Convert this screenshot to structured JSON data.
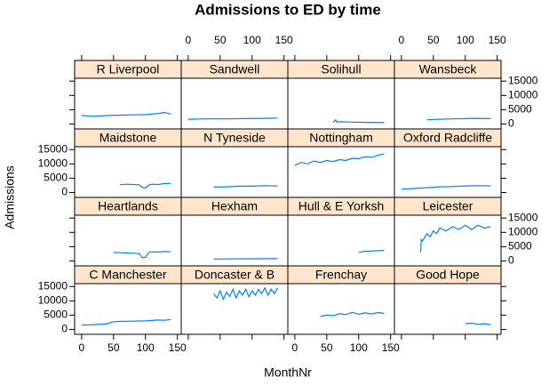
{
  "chart_data": {
    "type": "line",
    "title": "Admissions to ED by time",
    "xlabel": "MonthNr",
    "ylabel": "Admissions",
    "color": "#0080ff",
    "strip_color": "#ffe5cc",
    "xlim": [
      -11,
      156
    ],
    "ylim": [
      -1700,
      16000
    ],
    "xticks": [
      0,
      50,
      100,
      150
    ],
    "yticks": [
      0,
      5000,
      10000,
      15000
    ],
    "panels": [
      {
        "name": "R Liverpool",
        "x": [
          0,
          20,
          40,
          60,
          80,
          100,
          120,
          130,
          140
        ],
        "values": [
          3000,
          2700,
          3000,
          3100,
          3200,
          3300,
          3700,
          4000,
          3500
        ]
      },
      {
        "name": "Sandwell",
        "x": [
          0,
          30,
          60,
          90,
          120,
          140
        ],
        "values": [
          1700,
          1800,
          1800,
          1900,
          2000,
          2100
        ]
      },
      {
        "name": "Solihull",
        "x": [
          60,
          64,
          66,
          70,
          90,
          110,
          140
        ],
        "values": [
          600,
          1500,
          700,
          800,
          700,
          600,
          500
        ]
      },
      {
        "name": "Wansbeck",
        "x": [
          40,
          60,
          80,
          100,
          120,
          140
        ],
        "values": [
          1500,
          1700,
          1800,
          1900,
          2000,
          1900
        ]
      },
      {
        "name": "Maidstone",
        "x": [
          60,
          70,
          80,
          90,
          95,
          100,
          105,
          110,
          120,
          130,
          140
        ],
        "values": [
          2700,
          2900,
          2800,
          2700,
          1800,
          1500,
          2600,
          2900,
          2800,
          3100,
          3200
        ]
      },
      {
        "name": "N Tyneside",
        "x": [
          40,
          60,
          80,
          100,
          120,
          140
        ],
        "values": [
          1900,
          2000,
          2200,
          2200,
          2400,
          2300
        ]
      },
      {
        "name": "Nottingham",
        "x": [
          0,
          10,
          20,
          30,
          40,
          50,
          60,
          70,
          80,
          90,
          100,
          110,
          120,
          130,
          140
        ],
        "values": [
          9500,
          10500,
          10000,
          11000,
          10500,
          11200,
          10800,
          11500,
          11200,
          12000,
          11800,
          12500,
          12300,
          13000,
          13500
        ]
      },
      {
        "name": "Oxford Radcliffe",
        "x": [
          0,
          20,
          40,
          60,
          80,
          100,
          120,
          140
        ],
        "values": [
          1200,
          1400,
          1700,
          2000,
          2100,
          2300,
          2400,
          2300
        ]
      },
      {
        "name": "Heartlands",
        "x": [
          50,
          60,
          70,
          80,
          90,
          95,
          100,
          105,
          110,
          120,
          130,
          140
        ],
        "values": [
          3000,
          2900,
          2800,
          2700,
          2600,
          1100,
          1300,
          3000,
          3200,
          3100,
          3300,
          3200
        ]
      },
      {
        "name": "Hexham",
        "x": [
          40,
          80,
          140
        ],
        "values": [
          700,
          750,
          800
        ]
      },
      {
        "name": "Hull & E Yorksh",
        "x": [
          100,
          110,
          120,
          130,
          140
        ],
        "values": [
          3000,
          3400,
          3500,
          3600,
          3700
        ]
      },
      {
        "name": "Leicester",
        "x": [
          30,
          31,
          33,
          40,
          45,
          50,
          55,
          60,
          70,
          80,
          90,
          100,
          110,
          120,
          130,
          140
        ],
        "values": [
          3000,
          7500,
          7000,
          9500,
          8500,
          10500,
          9500,
          11500,
          10500,
          12000,
          11000,
          12500,
          11000,
          12500,
          11500,
          12000
        ]
      },
      {
        "name": "C Manchester",
        "x": [
          0,
          20,
          40,
          50,
          60,
          80,
          100,
          120,
          130,
          140
        ],
        "values": [
          1500,
          1700,
          2000,
          2700,
          2800,
          2900,
          3000,
          3300,
          3200,
          3500
        ]
      },
      {
        "name": "Doncaster & B",
        "x": [
          40,
          45,
          50,
          55,
          60,
          65,
          70,
          75,
          80,
          85,
          90,
          95,
          100,
          105,
          110,
          115,
          120,
          125,
          130,
          135,
          140
        ],
        "values": [
          12500,
          11000,
          13500,
          10500,
          13000,
          11500,
          14000,
          11000,
          13500,
          12000,
          14000,
          11500,
          13500,
          12000,
          14000,
          12500,
          14500,
          12000,
          14000,
          12500,
          14500
        ]
      },
      {
        "name": "Frenchay",
        "x": [
          40,
          50,
          60,
          70,
          80,
          90,
          100,
          110,
          120,
          130,
          140
        ],
        "values": [
          4500,
          5000,
          4800,
          5500,
          5200,
          6000,
          5300,
          5800,
          5400,
          5900,
          5600
        ]
      },
      {
        "name": "Good Hope",
        "x": [
          100,
          110,
          120,
          130,
          140
        ],
        "values": [
          2000,
          2200,
          1800,
          2000,
          1700
        ]
      }
    ]
  }
}
